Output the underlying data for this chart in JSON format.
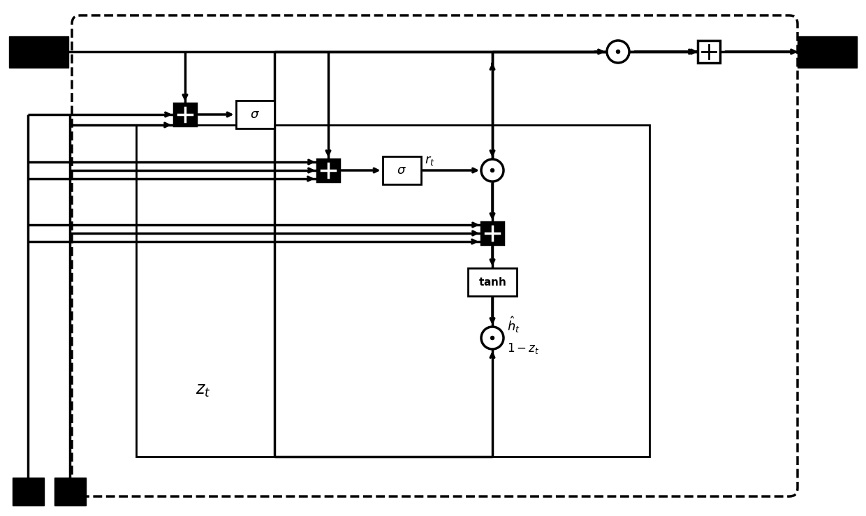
{
  "bg_color": "#ffffff",
  "fg_color": "#000000",
  "fig_width": 12.4,
  "fig_height": 7.39,
  "dpi": 100,
  "lw": 2.0,
  "lw_thick": 2.5,
  "node_r": 0.55,
  "box_r": 0.55
}
